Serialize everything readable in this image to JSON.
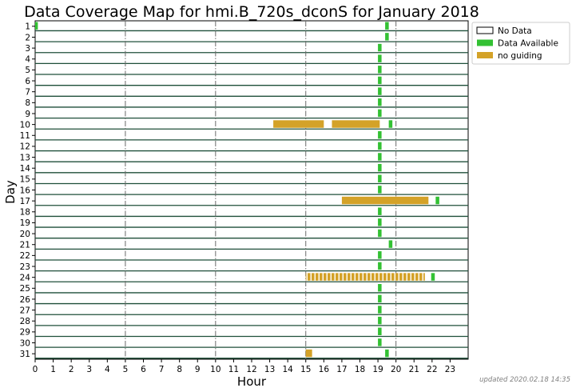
{
  "chart_data": {
    "type": "timeline",
    "title": "Data Coverage Map for hmi.B_720s_dconS for January 2018",
    "xlabel": "Hour",
    "ylabel": "Day",
    "xlim": [
      0,
      24
    ],
    "x_ticks": [
      "0",
      "1",
      "2",
      "3",
      "4",
      "5",
      "6",
      "7",
      "8",
      "9",
      "10",
      "11",
      "12",
      "13",
      "14",
      "15",
      "16",
      "17",
      "18",
      "19",
      "20",
      "21",
      "22",
      "23"
    ],
    "y_ticks": [
      "1",
      "2",
      "3",
      "4",
      "5",
      "6",
      "7",
      "8",
      "9",
      "10",
      "11",
      "12",
      "13",
      "14",
      "15",
      "16",
      "17",
      "18",
      "19",
      "20",
      "21",
      "22",
      "23",
      "24",
      "25",
      "26",
      "27",
      "28",
      "29",
      "30",
      "31"
    ],
    "major_x_lines": [
      5,
      10,
      15,
      20
    ],
    "legend": [
      {
        "label": "No Data",
        "color": "#ffffff"
      },
      {
        "label": "Data Available",
        "color": "#33c133"
      },
      {
        "label": "no guiding",
        "color": "#d4a228"
      }
    ],
    "colors": {
      "row_line": "#1f4f3a",
      "available": "#33c133",
      "no_guiding": "#d4a228"
    },
    "intervals": [
      {
        "day": 1,
        "start": 0.0,
        "end": 0.15,
        "status": "available"
      },
      {
        "day": 1,
        "start": 19.4,
        "end": 19.6,
        "status": "available"
      },
      {
        "day": 2,
        "start": 19.4,
        "end": 19.6,
        "status": "available"
      },
      {
        "day": 3,
        "start": 19.0,
        "end": 19.2,
        "status": "available"
      },
      {
        "day": 4,
        "start": 19.0,
        "end": 19.2,
        "status": "available"
      },
      {
        "day": 5,
        "start": 19.0,
        "end": 19.2,
        "status": "available"
      },
      {
        "day": 6,
        "start": 19.0,
        "end": 19.2,
        "status": "available"
      },
      {
        "day": 7,
        "start": 19.0,
        "end": 19.2,
        "status": "available"
      },
      {
        "day": 8,
        "start": 19.0,
        "end": 19.2,
        "status": "available"
      },
      {
        "day": 9,
        "start": 19.0,
        "end": 19.2,
        "status": "available"
      },
      {
        "day": 10,
        "start": 13.2,
        "end": 16.0,
        "status": "no_guiding"
      },
      {
        "day": 10,
        "start": 16.45,
        "end": 19.1,
        "status": "no_guiding"
      },
      {
        "day": 10,
        "start": 19.6,
        "end": 19.8,
        "status": "available"
      },
      {
        "day": 11,
        "start": 19.0,
        "end": 19.2,
        "status": "available"
      },
      {
        "day": 12,
        "start": 19.0,
        "end": 19.2,
        "status": "available"
      },
      {
        "day": 13,
        "start": 19.0,
        "end": 19.2,
        "status": "available"
      },
      {
        "day": 14,
        "start": 19.0,
        "end": 19.2,
        "status": "available"
      },
      {
        "day": 15,
        "start": 19.0,
        "end": 19.2,
        "status": "available"
      },
      {
        "day": 16,
        "start": 19.0,
        "end": 19.2,
        "status": "available"
      },
      {
        "day": 17,
        "start": 17.0,
        "end": 21.8,
        "status": "no_guiding"
      },
      {
        "day": 17,
        "start": 22.2,
        "end": 22.4,
        "status": "available"
      },
      {
        "day": 18,
        "start": 19.0,
        "end": 19.2,
        "status": "available"
      },
      {
        "day": 19,
        "start": 19.0,
        "end": 19.2,
        "status": "available"
      },
      {
        "day": 20,
        "start": 19.0,
        "end": 19.2,
        "status": "available"
      },
      {
        "day": 21,
        "start": 19.6,
        "end": 19.8,
        "status": "available"
      },
      {
        "day": 22,
        "start": 19.0,
        "end": 19.2,
        "status": "available"
      },
      {
        "day": 23,
        "start": 19.0,
        "end": 19.2,
        "status": "available"
      },
      {
        "day": 24,
        "start": 15.0,
        "end": 21.6,
        "status": "no_guiding",
        "striped": true
      },
      {
        "day": 24,
        "start": 21.95,
        "end": 22.15,
        "status": "available"
      },
      {
        "day": 25,
        "start": 19.0,
        "end": 19.2,
        "status": "available"
      },
      {
        "day": 26,
        "start": 19.0,
        "end": 19.2,
        "status": "available"
      },
      {
        "day": 27,
        "start": 19.0,
        "end": 19.2,
        "status": "available"
      },
      {
        "day": 28,
        "start": 19.0,
        "end": 19.2,
        "status": "available"
      },
      {
        "day": 29,
        "start": 19.0,
        "end": 19.2,
        "status": "available"
      },
      {
        "day": 30,
        "start": 19.0,
        "end": 19.2,
        "status": "available"
      },
      {
        "day": 31,
        "start": 15.0,
        "end": 15.35,
        "status": "no_guiding"
      },
      {
        "day": 31,
        "start": 19.4,
        "end": 19.6,
        "status": "available"
      }
    ]
  },
  "footer": {
    "updated": "updated 2020.02.18 14:35"
  }
}
